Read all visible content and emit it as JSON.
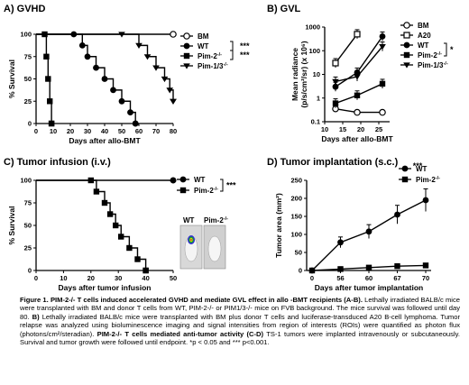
{
  "chart_data": [
    {
      "panel": "A) GVHD",
      "type": "line",
      "step": true,
      "xlabel": "Days after allo-BMT",
      "ylabel": "% Survival",
      "xlim": [
        0,
        80
      ],
      "ylim": [
        0,
        100
      ],
      "xticks": [
        0,
        10,
        20,
        30,
        40,
        50,
        60,
        70,
        80
      ],
      "yticks": [
        0,
        25,
        50,
        75,
        100
      ],
      "series": [
        {
          "name": "BM",
          "marker": "open-circle",
          "x": [
            0,
            80
          ],
          "y": [
            100,
            100
          ]
        },
        {
          "name": "WT",
          "marker": "filled-circle",
          "x": [
            0,
            22,
            27,
            30,
            35,
            40,
            45,
            50,
            55,
            58
          ],
          "y": [
            100,
            100,
            87.5,
            75,
            62.5,
            50,
            37.5,
            25,
            12.5,
            0
          ]
        },
        {
          "name": "Pim-2-/-",
          "marker": "filled-square",
          "x": [
            0,
            5,
            6,
            7,
            8,
            9
          ],
          "y": [
            100,
            100,
            75,
            50,
            25,
            0
          ]
        },
        {
          "name": "Pim-1/3-/-",
          "marker": "filled-triangle-down",
          "x": [
            0,
            50,
            60,
            65,
            70,
            75,
            78,
            80
          ],
          "y": [
            100,
            100,
            87.5,
            75,
            62.5,
            50,
            37.5,
            25
          ]
        }
      ],
      "significance": [
        "***",
        "***"
      ]
    },
    {
      "panel": "B) GVL",
      "type": "line",
      "xlabel": "Days after allo-BMT",
      "ylabel_lines": [
        "Mean radiance",
        "(p/s/cm²/sr) (x 10⁶)"
      ],
      "log_y": true,
      "xlim": [
        10,
        28
      ],
      "ylim": [
        0.1,
        1000
      ],
      "xticks": [
        10,
        15,
        20,
        25
      ],
      "yticks": [
        0.1,
        1,
        10,
        100,
        1000
      ],
      "ytick_labels": [
        "0.1",
        "1",
        "10",
        "100",
        "1000"
      ],
      "series": [
        {
          "name": "BM",
          "marker": "open-circle",
          "x": [
            13,
            19,
            26
          ],
          "y": [
            0.35,
            0.25,
            0.25
          ]
        },
        {
          "name": "A20",
          "marker": "open-square",
          "x": [
            13,
            19
          ],
          "y": [
            30,
            500
          ]
        },
        {
          "name": "WT",
          "marker": "filled-circle",
          "x": [
            13,
            19,
            26
          ],
          "y": [
            3,
            12,
            400
          ]
        },
        {
          "name": "Pim-2-/-",
          "marker": "filled-square",
          "x": [
            13,
            19,
            26
          ],
          "y": [
            0.6,
            1.3,
            4
          ]
        },
        {
          "name": "Pim-1/3-/-",
          "marker": "filled-triangle-down",
          "x": [
            13,
            19,
            26
          ],
          "y": [
            5,
            8,
            150
          ]
        }
      ],
      "significance": [
        "*"
      ]
    },
    {
      "panel": "C) Tumor infusion (i.v.)",
      "type": "line",
      "step": true,
      "xlabel": "Days after tumor infusion",
      "ylabel": "% Survival",
      "xlim": [
        0,
        50
      ],
      "ylim": [
        0,
        100
      ],
      "xticks": [
        0,
        10,
        20,
        30,
        40,
        50
      ],
      "yticks": [
        0,
        25,
        50,
        75,
        100
      ],
      "series": [
        {
          "name": "WT",
          "marker": "filled-circle",
          "x": [
            0,
            50
          ],
          "y": [
            100,
            100
          ]
        },
        {
          "name": "Pim-2-/-",
          "marker": "filled-square",
          "x": [
            0,
            20,
            22,
            25,
            27,
            29,
            31,
            34,
            37,
            40
          ],
          "y": [
            100,
            100,
            87.5,
            75,
            62.5,
            50,
            37.5,
            25,
            12.5,
            0
          ]
        }
      ],
      "significance": [
        "***"
      ],
      "inset_labels": [
        "WT",
        "Pim-2-/-"
      ]
    },
    {
      "panel": "D) Tumor implantation (s.c.)",
      "type": "line",
      "xlabel": "Days after tumor implantation",
      "ylabel": "Tumor area (mm²)",
      "categories": [
        "0",
        "56",
        "60",
        "67",
        "70"
      ],
      "ylim": [
        0,
        250
      ],
      "yticks": [
        0,
        50,
        100,
        150,
        200,
        250
      ],
      "series": [
        {
          "name": "WT",
          "marker": "filled-circle",
          "values": [
            0,
            78,
            108,
            155,
            195
          ]
        },
        {
          "name": "Pim-2-/-",
          "marker": "filled-square",
          "values": [
            0,
            4,
            8,
            12,
            14
          ]
        }
      ],
      "significance": [
        "***"
      ]
    }
  ],
  "caption": {
    "bold_lead": "Figure 1. PIM-2-/- T cells induced accelerated GVHD and mediate GVL effect in allo -BMT recipients (A-B).",
    "text_1": " Lethally irradiated BALB/c mice were transplanted with BM and donor T cells from WT, PIM-2-/- or PIM1/3-/- mice on FVB background. The mice survival was followed until day 80. ",
    "bold_b": "B)",
    "text_2": " Lethally irradiated BALB/c mice were transplanted with BM plus donor T cells and luciferase-transduced A20 B-cell lymphoma. Tumor relapse was analyzed using bioluminescence imaging and signal intensities from region of interests (ROIs) were quantified as photon flux (photons/cm²/steradian). ",
    "bold_c": "PIM-2-/- T cells mediated anti-tumor activity (C-D)",
    "text_3": " TS-1 tumors were implanted intravenously or subcutaneously. Survival and tumor growth were followed until endpoint. *p < 0.05 and *** p<0.001."
  }
}
